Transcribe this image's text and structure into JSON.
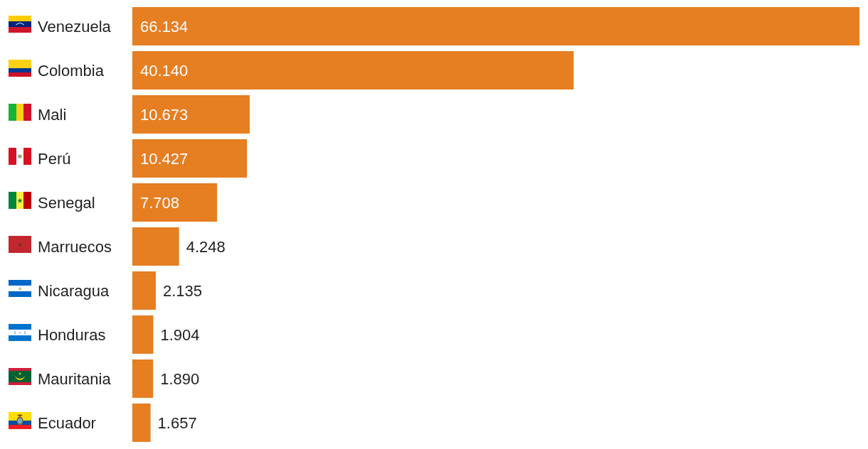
{
  "chart_data": {
    "type": "bar",
    "orientation": "horizontal",
    "categories": [
      "Venezuela",
      "Colombia",
      "Mali",
      "Perú",
      "Senegal",
      "Marruecos",
      "Nicaragua",
      "Honduras",
      "Mauritania",
      "Ecuador"
    ],
    "values": [
      66134,
      40140,
      10673,
      10427,
      7708,
      4248,
      2135,
      1904,
      1890,
      1657
    ],
    "color": "#e67e22",
    "value_labels": [
      "66.134",
      "40.140",
      "10.673",
      "10.427",
      "7.708",
      "4.248",
      "2.135",
      "1.904",
      "1.890",
      "1.657"
    ]
  }
}
